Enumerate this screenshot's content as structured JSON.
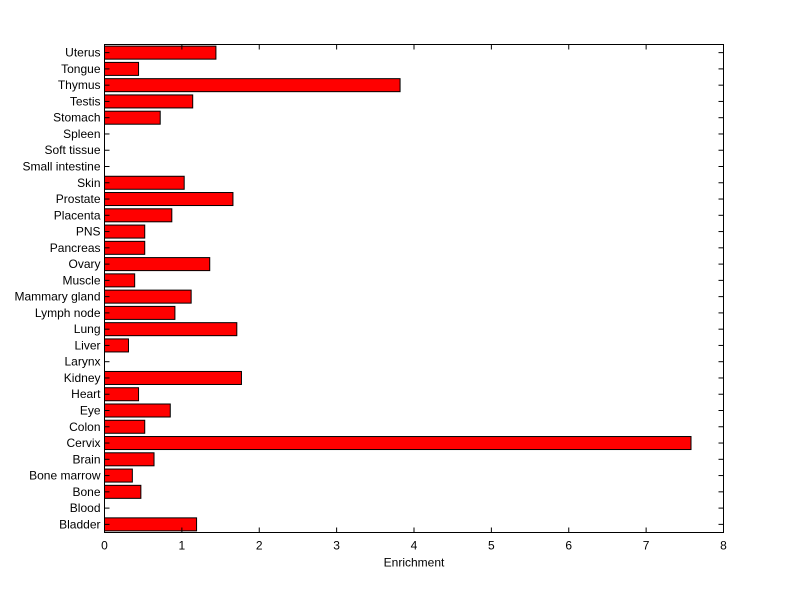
{
  "chart_data": {
    "type": "bar",
    "orientation": "horizontal",
    "title": "",
    "xlabel": "Enrichment",
    "ylabel": "",
    "xlim": [
      0,
      8
    ],
    "xticks": [
      "0",
      "1",
      "2",
      "3",
      "4",
      "5",
      "6",
      "7",
      "8"
    ],
    "grid": false,
    "bar_color": "#ff0000",
    "bar_edge_color": "#000000",
    "categories": [
      "Bladder",
      "Blood",
      "Bone",
      "Bone marrow",
      "Brain",
      "Cervix",
      "Colon",
      "Eye",
      "Heart",
      "Kidney",
      "Larynx",
      "Liver",
      "Lung",
      "Lymph node",
      "Mammary gland",
      "Muscle",
      "Ovary",
      "Pancreas",
      "PNS",
      "Placenta",
      "Prostate",
      "Skin",
      "Small intestine",
      "Soft tissue",
      "Spleen",
      "Stomach",
      "Testis",
      "Thymus",
      "Tongue",
      "Uterus"
    ],
    "values": [
      1.19,
      0,
      0.47,
      0.36,
      0.64,
      7.58,
      0.52,
      0.85,
      0.44,
      1.77,
      0,
      0.31,
      1.71,
      0.91,
      1.12,
      0.39,
      1.36,
      0.52,
      0.52,
      0.87,
      1.66,
      1.03,
      0,
      0,
      0,
      0.72,
      1.14,
      3.82,
      0.44,
      1.44
    ]
  }
}
